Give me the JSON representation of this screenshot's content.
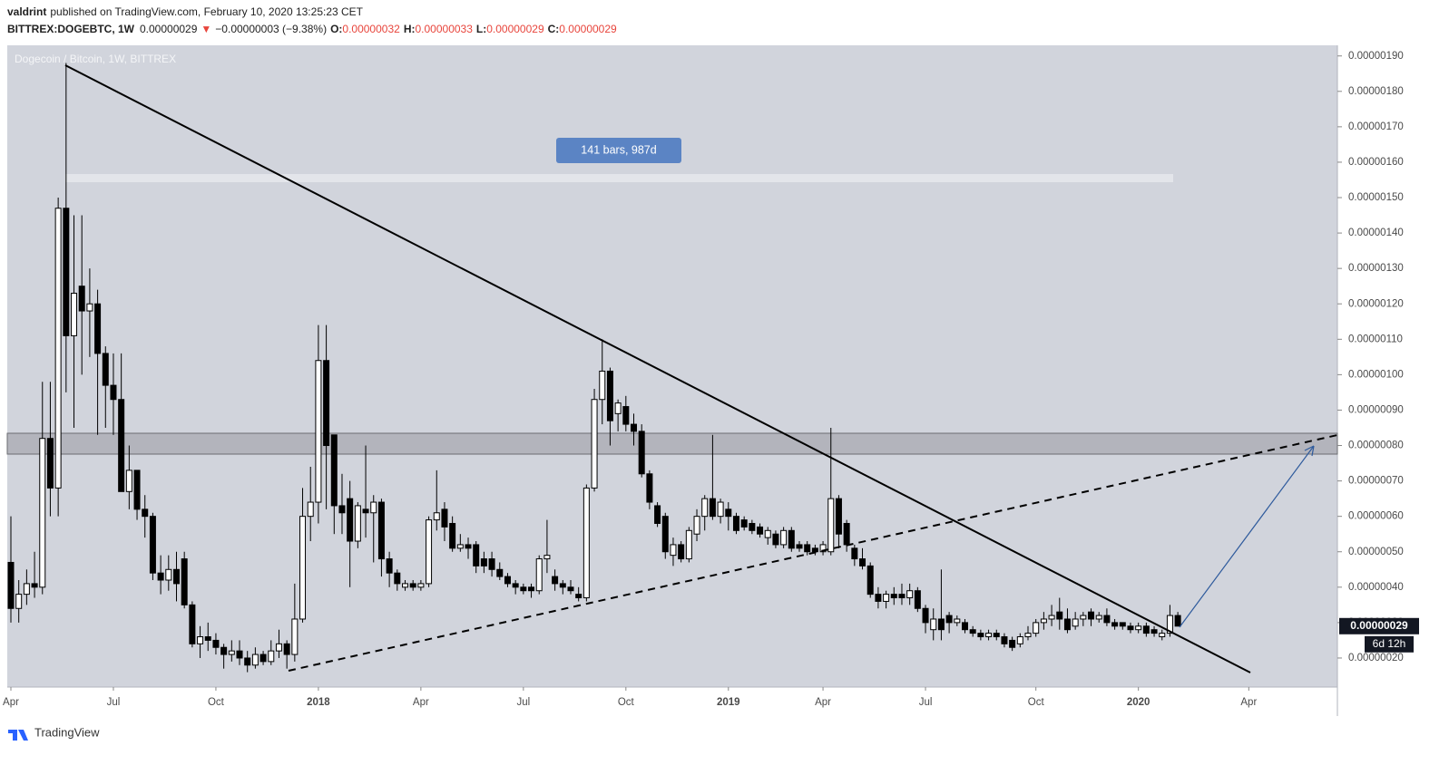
{
  "header": {
    "author": "valdrint",
    "published": "published on TradingView.com, February 10, 2020 13:25:23 CET",
    "symbol": "BITTREX:DOGEBTC, 1W",
    "last": "0.00000029",
    "arrow": "▼",
    "change": "−0.00000003 (−9.38%)",
    "ohlc": [
      {
        "label": "O:",
        "value": "0.00000032"
      },
      {
        "label": "H:",
        "value": "0.00000033"
      },
      {
        "label": "L:",
        "value": "0.00000029"
      },
      {
        "label": "C:",
        "value": "0.00000029"
      }
    ]
  },
  "footer": {
    "brand": "TradingView"
  },
  "chart_data": {
    "type": "candlestick",
    "title": "Dogecoin / Bitcoin, 1W, BITTREX",
    "measure_label": "141 bars, 987d",
    "price_label": "0.00000029",
    "countdown": "6d 12h",
    "up_color": "#ffffff",
    "down_color": "#000000",
    "border_color": "#000000",
    "grid": false,
    "categories": [
      "Apr",
      null,
      null,
      null,
      null,
      null,
      null,
      null,
      null,
      null,
      null,
      null,
      null,
      "Jul",
      null,
      null,
      null,
      null,
      null,
      null,
      null,
      null,
      null,
      null,
      null,
      null,
      "Oct",
      null,
      null,
      null,
      null,
      null,
      null,
      null,
      null,
      null,
      null,
      null,
      null,
      "2018",
      null,
      null,
      null,
      null,
      null,
      null,
      null,
      null,
      null,
      null,
      null,
      null,
      "Apr",
      null,
      null,
      null,
      null,
      null,
      null,
      null,
      null,
      null,
      null,
      null,
      null,
      "Jul",
      null,
      null,
      null,
      null,
      null,
      null,
      null,
      null,
      null,
      null,
      null,
      null,
      "Oct",
      null,
      null,
      null,
      null,
      null,
      null,
      null,
      null,
      null,
      null,
      null,
      null,
      "2019",
      null,
      null,
      null,
      null,
      null,
      null,
      null,
      null,
      null,
      null,
      null,
      "Apr",
      null,
      null,
      null,
      null,
      null,
      null,
      null,
      null,
      null,
      null,
      null,
      null,
      "Jul",
      null,
      null,
      null,
      null,
      null,
      null,
      null,
      null,
      null,
      null,
      null,
      null,
      null,
      "Oct",
      null,
      null,
      null,
      null,
      null,
      null,
      null,
      null,
      null,
      null,
      null,
      null,
      "2020",
      null,
      null,
      null,
      null,
      null,
      null,
      null,
      null,
      null,
      null,
      null,
      null,
      null,
      "Apr",
      null,
      null,
      null,
      null,
      null,
      null,
      null,
      null,
      null,
      null,
      null
    ],
    "open": [
      4.7e-07,
      3.4e-07,
      3.8e-07,
      4.1e-07,
      4e-07,
      8.2e-07,
      6.8e-07,
      1.47e-06,
      1.11e-06,
      1.25e-06,
      1.18e-06,
      1.2e-06,
      1.06e-06,
      9.7e-07,
      9.3e-07,
      6.7e-07,
      7.3e-07,
      6.2e-07,
      6e-07,
      4.4e-07,
      4.2e-07,
      4.5e-07,
      4.8e-07,
      3.5e-07,
      2.4e-07,
      2.6e-07,
      2.5e-07,
      2.3e-07,
      2.1e-07,
      2.2e-07,
      2e-07,
      1.8e-07,
      2.1e-07,
      1.9e-07,
      2.2e-07,
      2.4e-07,
      2.1e-07,
      3.1e-07,
      6e-07,
      6.4e-07,
      1.04e-06,
      8.3e-07,
      6.3e-07,
      6.5e-07,
      5.3e-07,
      6.2e-07,
      6.1e-07,
      6.4e-07,
      4.8e-07,
      4.4e-07,
      4e-07,
      4.1e-07,
      4e-07,
      4.1e-07,
      5.9e-07,
      6.2e-07,
      5.8e-07,
      5.1e-07,
      5.2e-07,
      5.2e-07,
      4.8e-07,
      4.8e-07,
      4.5e-07,
      4.3e-07,
      4.1e-07,
      4e-07,
      4e-07,
      3.9e-07,
      4.8e-07,
      4.3e-07,
      4.1e-07,
      4e-07,
      3.8e-07,
      3.7e-07,
      6.8e-07,
      9.3e-07,
      1.01e-06,
      8.9e-07,
      9.1e-07,
      8.6e-07,
      8.4e-07,
      7.2e-07,
      6.3e-07,
      6e-07,
      4.9e-07,
      5.2e-07,
      4.8e-07,
      5.5e-07,
      6e-07,
      6.5e-07,
      6e-07,
      6.2e-07,
      6e-07,
      5.9e-07,
      5.8e-07,
      5.7e-07,
      5.4e-07,
      5.5e-07,
      5.2e-07,
      5.6e-07,
      5.2e-07,
      5.2e-07,
      5.1e-07,
      5e-07,
      5e-07,
      6.5e-07,
      5.8e-07,
      5.1e-07,
      4.8e-07,
      4.6e-07,
      3.8e-07,
      3.6e-07,
      3.8e-07,
      3.8e-07,
      3.7e-07,
      3.9e-07,
      3.4e-07,
      2.8e-07,
      3.1e-07,
      3.2e-07,
      3e-07,
      3e-07,
      2.8e-07,
      2.7e-07,
      2.6e-07,
      2.7e-07,
      2.6e-07,
      2.5e-07,
      2.4e-07,
      2.6e-07,
      2.7e-07,
      3e-07,
      3.1e-07,
      3.3e-07,
      3.1e-07,
      2.9e-07,
      3.1e-07,
      3.3e-07,
      3.1e-07,
      3.2e-07,
      3e-07,
      3e-07,
      2.9e-07,
      2.8e-07,
      2.9e-07,
      2.8e-07,
      2.6e-07,
      2.7e-07,
      3.2e-07,
      null,
      null,
      null,
      null,
      null,
      null,
      null,
      null,
      null,
      null,
      null,
      null,
      null,
      null,
      null,
      null,
      null,
      null,
      null,
      null
    ],
    "high": [
      6e-07,
      4.2e-07,
      4.5e-07,
      5e-07,
      9.8e-07,
      9.8e-07,
      1.5e-06,
      1.88e-06,
      1.45e-06,
      1.45e-06,
      1.3e-06,
      1.24e-06,
      1.08e-06,
      1.06e-06,
      1.06e-06,
      8e-07,
      7.3e-07,
      6.6e-07,
      6.1e-07,
      4.9e-07,
      4.9e-07,
      5e-07,
      5e-07,
      3.6e-07,
      2.9e-07,
      3e-07,
      2.7e-07,
      2.4e-07,
      2.5e-07,
      2.5e-07,
      2.2e-07,
      2.3e-07,
      2.2e-07,
      2.5e-07,
      2.8e-07,
      2.5e-07,
      4.1e-07,
      6.8e-07,
      7.4e-07,
      1.14e-06,
      1.14e-06,
      8.3e-07,
      7.2e-07,
      7e-07,
      6.4e-07,
      8e-07,
      6.6e-07,
      6.5e-07,
      5e-07,
      4.5e-07,
      4.2e-07,
      4.2e-07,
      4.2e-07,
      6e-07,
      7.3e-07,
      6.4e-07,
      6e-07,
      5.5e-07,
      5.4e-07,
      5.3e-07,
      5e-07,
      5e-07,
      4.7e-07,
      4.4e-07,
      4.2e-07,
      4.1e-07,
      4.1e-07,
      4.9e-07,
      5.9e-07,
      4.5e-07,
      4.2e-07,
      4.2e-07,
      4e-07,
      6.9e-07,
      9.6e-07,
      1.1e-06,
      1.02e-06,
      9.3e-07,
      9.4e-07,
      8.9e-07,
      8.6e-07,
      7.3e-07,
      6.4e-07,
      6.1e-07,
      5.4e-07,
      5.3e-07,
      5.7e-07,
      6.2e-07,
      6.6e-07,
      8.3e-07,
      6.5e-07,
      6.4e-07,
      6.1e-07,
      6e-07,
      5.9e-07,
      5.8e-07,
      5.7e-07,
      5.6e-07,
      5.7e-07,
      5.7e-07,
      5.3e-07,
      5.3e-07,
      5.2e-07,
      5.3e-07,
      8.5e-07,
      6.6e-07,
      5.9e-07,
      5.2e-07,
      5.1e-07,
      4.7e-07,
      4e-07,
      3.9e-07,
      4e-07,
      4.1e-07,
      4.1e-07,
      4e-07,
      3.5e-07,
      3.4e-07,
      4.5e-07,
      3.3e-07,
      3.2e-07,
      3.1e-07,
      2.9e-07,
      2.8e-07,
      2.8e-07,
      2.8e-07,
      2.7e-07,
      2.6e-07,
      2.7e-07,
      2.9e-07,
      3.1e-07,
      3.3e-07,
      3.5e-07,
      3.7e-07,
      3.4e-07,
      3.3e-07,
      3.3e-07,
      3.4e-07,
      3.3e-07,
      3.4e-07,
      3.1e-07,
      3e-07,
      3e-07,
      3e-07,
      3e-07,
      2.9e-07,
      2.8e-07,
      3.5e-07,
      3.3e-07,
      null,
      null,
      null,
      null,
      null,
      null,
      null,
      null,
      null,
      null,
      null,
      null,
      null,
      null,
      null,
      null,
      null,
      null,
      null,
      null
    ],
    "low": [
      3e-07,
      3e-07,
      3.5e-07,
      3.7e-07,
      3.8e-07,
      6e-07,
      6e-07,
      9.5e-07,
      8.5e-07,
      1e-06,
      1.05e-06,
      8.3e-07,
      8.5e-07,
      8.3e-07,
      6.7e-07,
      6.2e-07,
      5.9e-07,
      5.4e-07,
      4.2e-07,
      3.8e-07,
      3.9e-07,
      3.6e-07,
      3.4e-07,
      2.3e-07,
      2e-07,
      2.2e-07,
      2.1e-07,
      1.7e-07,
      1.9e-07,
      1.8e-07,
      1.6e-07,
      1.7e-07,
      1.8e-07,
      1.8e-07,
      2e-07,
      1.7e-07,
      1.9e-07,
      3e-07,
      5.3e-07,
      5.8e-07,
      6.2e-07,
      5.5e-07,
      5.5e-07,
      4e-07,
      5.1e-07,
      5.4e-07,
      4.7e-07,
      4.3e-07,
      4e-07,
      3.9e-07,
      3.9e-07,
      3.9e-07,
      3.9e-07,
      4e-07,
      5.6e-07,
      5.3e-07,
      5e-07,
      5e-07,
      4.8e-07,
      4.4e-07,
      4.4e-07,
      4.3e-07,
      4.2e-07,
      4e-07,
      3.8e-07,
      3.8e-07,
      3.7e-07,
      3.8e-07,
      4.4e-07,
      3.9e-07,
      3.8e-07,
      3.8e-07,
      3.6e-07,
      3.6e-07,
      6.7e-07,
      8.6e-07,
      8e-07,
      8.4e-07,
      8.4e-07,
      8e-07,
      7.1e-07,
      6.2e-07,
      5.7e-07,
      4.8e-07,
      4.6e-07,
      4.7e-07,
      4.7e-07,
      5.3e-07,
      5.6e-07,
      5.9e-07,
      5.8e-07,
      5.6e-07,
      5.5e-07,
      5.6e-07,
      5.5e-07,
      5.4e-07,
      5.2e-07,
      5.1e-07,
      5.1e-07,
      5e-07,
      5e-07,
      4.9e-07,
      4.9e-07,
      4.9e-07,
      4.9e-07,
      5.1e-07,
      5e-07,
      4.6e-07,
      4.5e-07,
      3.7e-07,
      3.4e-07,
      3.4e-07,
      3.5e-07,
      3.5e-07,
      3.5e-07,
      3.3e-07,
      2.7e-07,
      2.5e-07,
      2.5e-07,
      2.7e-07,
      2.9e-07,
      2.7e-07,
      2.6e-07,
      2.5e-07,
      2.5e-07,
      2.5e-07,
      2.3e-07,
      2.2e-07,
      2.3e-07,
      2.5e-07,
      2.6e-07,
      2.8e-07,
      2.9e-07,
      2.8e-07,
      2.7e-07,
      2.8e-07,
      2.9e-07,
      2.9e-07,
      3e-07,
      2.9e-07,
      2.8e-07,
      2.8e-07,
      2.7e-07,
      2.7e-07,
      2.6e-07,
      2.6e-07,
      2.5e-07,
      2.6e-07,
      2.9e-07,
      null,
      null,
      null,
      null,
      null,
      null,
      null,
      null,
      null,
      null,
      null,
      null,
      null,
      null,
      null,
      null,
      null,
      null,
      null,
      null
    ],
    "close": [
      3.4e-07,
      3.8e-07,
      4.1e-07,
      4e-07,
      8.2e-07,
      6.8e-07,
      1.47e-06,
      1.11e-06,
      1.23e-06,
      1.18e-06,
      1.2e-06,
      1.06e-06,
      9.7e-07,
      9.3e-07,
      6.7e-07,
      7.3e-07,
      6.2e-07,
      6e-07,
      4.4e-07,
      4.2e-07,
      4.5e-07,
      4.1e-07,
      3.5e-07,
      2.4e-07,
      2.6e-07,
      2.5e-07,
      2.3e-07,
      2.1e-07,
      2.2e-07,
      2e-07,
      1.8e-07,
      2.1e-07,
      1.9e-07,
      2.2e-07,
      2.4e-07,
      2.1e-07,
      3.1e-07,
      6e-07,
      6.4e-07,
      1.04e-06,
      8e-07,
      6.3e-07,
      6.1e-07,
      5.3e-07,
      6.3e-07,
      6.1e-07,
      6.4e-07,
      4.8e-07,
      4.4e-07,
      4.1e-07,
      4.1e-07,
      4e-07,
      4.1e-07,
      5.9e-07,
      6.1e-07,
      5.7e-07,
      5.1e-07,
      5.2e-07,
      5.1e-07,
      4.6e-07,
      4.6e-07,
      4.5e-07,
      4.3e-07,
      4.1e-07,
      4e-07,
      3.9e-07,
      3.9e-07,
      4.8e-07,
      4.9e-07,
      4.1e-07,
      4e-07,
      3.9e-07,
      3.7e-07,
      6.8e-07,
      9.3e-07,
      1.01e-06,
      8.7e-07,
      9.2e-07,
      8.6e-07,
      8.4e-07,
      7.2e-07,
      6.4e-07,
      5.8e-07,
      5e-07,
      5.2e-07,
      4.8e-07,
      5.6e-07,
      6e-07,
      6.5e-07,
      6e-07,
      6.4e-07,
      6e-07,
      5.6e-07,
      5.7e-07,
      5.6e-07,
      5.5e-07,
      5.6e-07,
      5.2e-07,
      5.6e-07,
      5.1e-07,
      5.1e-07,
      5e-07,
      5e-07,
      5.2e-07,
      6.5e-07,
      5.5e-07,
      5.2e-07,
      4.8e-07,
      4.6e-07,
      3.8e-07,
      3.6e-07,
      3.8e-07,
      3.7e-07,
      3.7e-07,
      3.9e-07,
      3.4e-07,
      3e-07,
      3.1e-07,
      2.8e-07,
      3e-07,
      3.1e-07,
      2.8e-07,
      2.7e-07,
      2.6e-07,
      2.7e-07,
      2.6e-07,
      2.4e-07,
      2.3e-07,
      2.6e-07,
      2.7e-07,
      3e-07,
      3.1e-07,
      3.2e-07,
      3.1e-07,
      2.8e-07,
      3.1e-07,
      3.2e-07,
      3.1e-07,
      3.2e-07,
      3e-07,
      2.9e-07,
      2.9e-07,
      2.8e-07,
      2.9e-07,
      2.7e-07,
      2.7e-07,
      2.7e-07,
      3.2e-07,
      2.9e-07,
      null,
      null,
      null,
      null,
      null,
      null,
      null,
      null,
      null,
      null,
      null,
      null,
      null,
      null,
      null,
      null,
      null,
      null,
      null,
      null
    ],
    "ylim": [
      1.18e-07,
      1.93e-06
    ],
    "yticks": [
      {
        "value": 2e-07,
        "label": "0.00000020"
      },
      {
        "value": 3e-07,
        "label": "0.00000030"
      },
      {
        "value": 4e-07,
        "label": "0.00000040"
      },
      {
        "value": 5e-07,
        "label": "0.00000050"
      },
      {
        "value": 6e-07,
        "label": "0.00000060"
      },
      {
        "value": 7e-07,
        "label": "0.00000070"
      },
      {
        "value": 8e-07,
        "label": "0.00000080"
      },
      {
        "value": 9e-07,
        "label": "0.00000090"
      },
      {
        "value": 1e-06,
        "label": "0.00000100"
      },
      {
        "value": 1.1e-06,
        "label": "0.00000110"
      },
      {
        "value": 1.2e-06,
        "label": "0.00000120"
      },
      {
        "value": 1.3e-06,
        "label": "0.00000130"
      },
      {
        "value": 1.4e-06,
        "label": "0.00000140"
      },
      {
        "value": 1.5e-06,
        "label": "0.00000150"
      },
      {
        "value": 1.6e-06,
        "label": "0.00000160"
      },
      {
        "value": 1.7e-06,
        "label": "0.00000170"
      },
      {
        "value": 1.8e-06,
        "label": "0.00000180"
      },
      {
        "value": 1.9e-06,
        "label": "0.00000190"
      }
    ]
  }
}
